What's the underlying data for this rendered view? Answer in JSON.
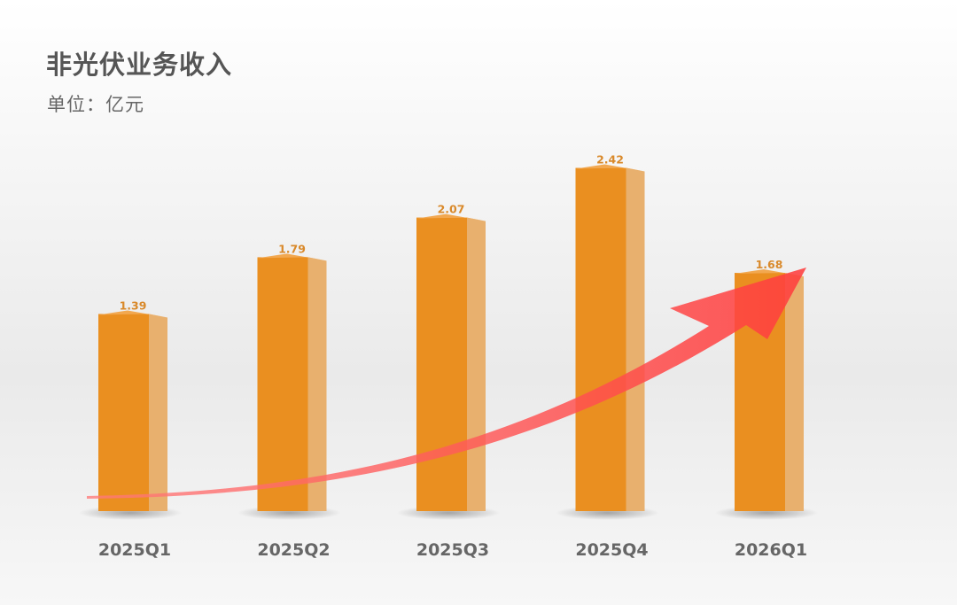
{
  "chart_data": {
    "type": "bar",
    "title": "非光伏业务收入",
    "subtitle": "单位：亿元",
    "categories": [
      "2025Q1",
      "2025Q2",
      "2025Q3",
      "2025Q4",
      "2026Q1"
    ],
    "values": [
      1.39,
      1.79,
      2.07,
      2.42,
      1.68
    ],
    "ylim": [
      0,
      3.2
    ],
    "grid": false,
    "colors": {
      "bar_front": "#ea8f20",
      "bar_side": "#e8b06e",
      "bar_top": "#f2a850",
      "value_label": "#d9892a",
      "trend_arrow": "#ff4848"
    }
  }
}
